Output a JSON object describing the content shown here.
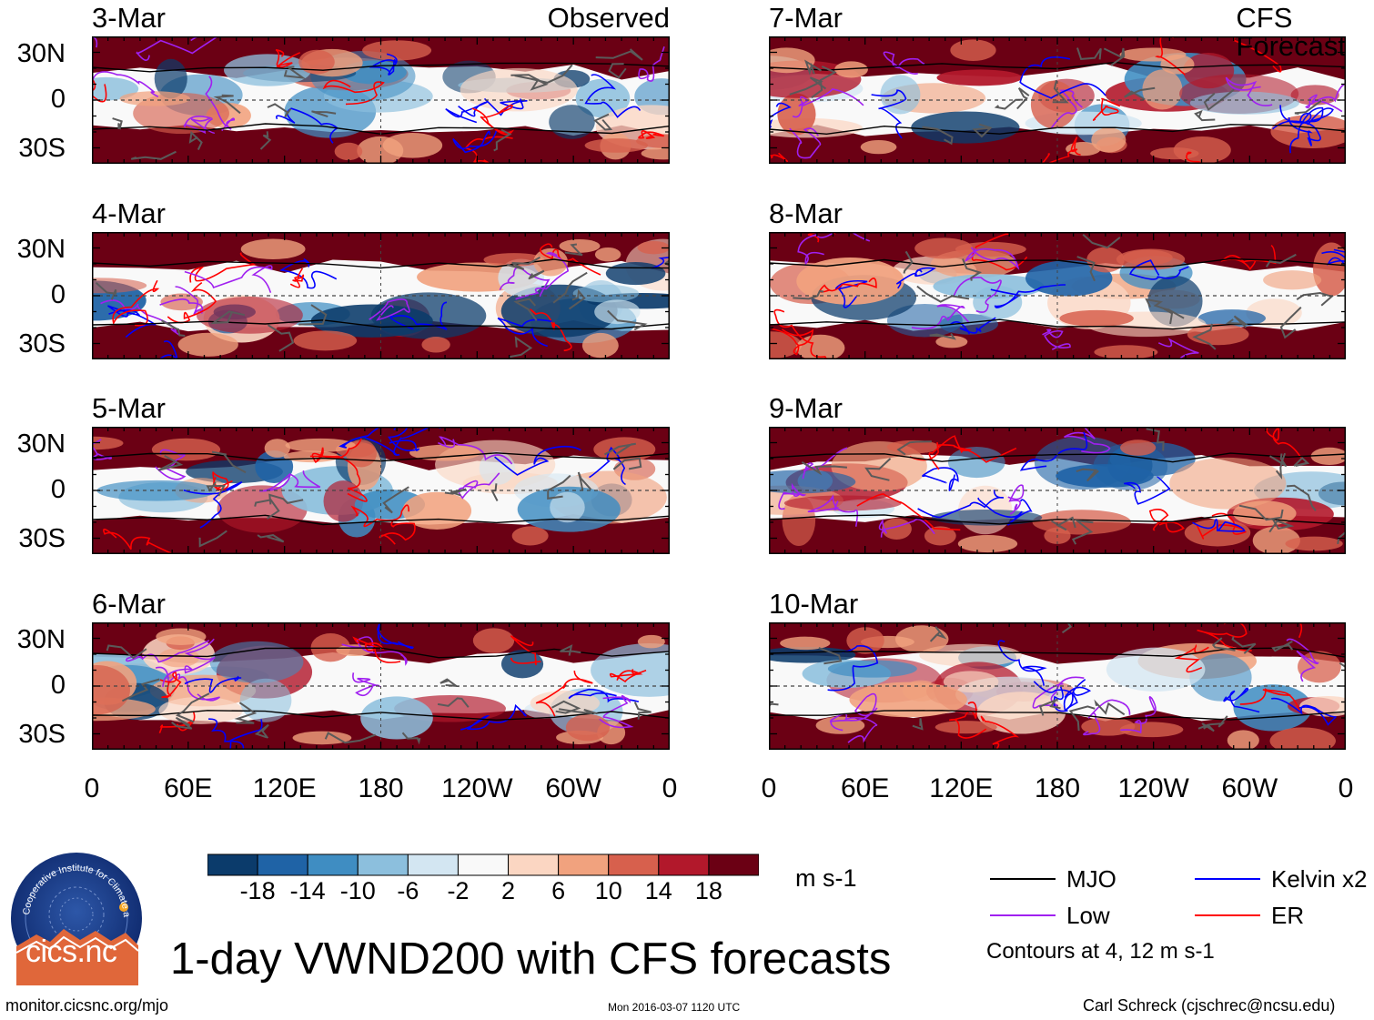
{
  "chart_data": {
    "type": "heatmap",
    "title": "1-day VWND200 with CFS forecasts",
    "variable": "VWND200",
    "units": "m s-1",
    "columns": [
      {
        "source": "Observed",
        "dates": [
          "3-Mar",
          "4-Mar",
          "5-Mar",
          "6-Mar"
        ]
      },
      {
        "source": "CFS Forecast",
        "dates": [
          "7-Mar",
          "8-Mar",
          "9-Mar",
          "10-Mar"
        ]
      }
    ],
    "lat_ticks": [
      "30N",
      "0",
      "30S"
    ],
    "lon_ticks": [
      "0",
      "60E",
      "120E",
      "180",
      "120W",
      "60W",
      "0"
    ],
    "lat_range": [
      -40,
      40
    ],
    "lon_range": [
      0,
      360
    ],
    "colorbar": {
      "ticks": [
        "-18",
        "-14",
        "-10",
        "-6",
        "-2",
        "2",
        "6",
        "10",
        "14",
        "18"
      ],
      "colors": [
        "#0b3b6b",
        "#1f63a6",
        "#3f8dc2",
        "#8cbfdd",
        "#d3e6f2",
        "#f9f9f9",
        "#fbd6c2",
        "#f1a27e",
        "#d7604d",
        "#b2182b",
        "#6b0014"
      ]
    },
    "legend": [
      {
        "label": "MJO",
        "color": "#000000"
      },
      {
        "label": "Kelvin x2",
        "color": "#0000ff"
      },
      {
        "label": "Low",
        "color": "#a020f0"
      },
      {
        "label": "ER",
        "color": "#ff0000"
      }
    ],
    "contour_note": "Contours at 4, 12 m s-1"
  },
  "footer": {
    "url": "monitor.cicsnc.org/mjo",
    "timestamp": "Mon 2016-03-07 1120 UTC",
    "author": "Carl Schreck (cjschrec@ncsu.edu)"
  },
  "logo": {
    "name": "cics.nc",
    "ring_text": "Cooperative Institute for Climate and Satellites"
  }
}
